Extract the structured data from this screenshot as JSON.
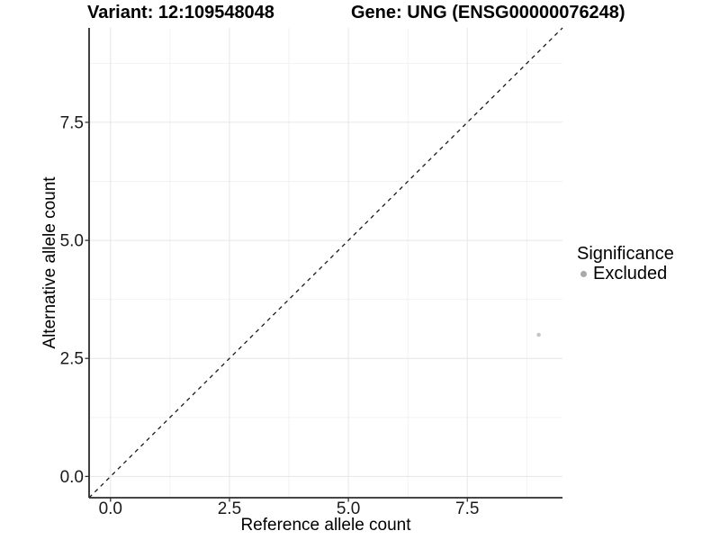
{
  "titles": {
    "variant": "Variant: 12:109548048",
    "gene": "Gene: UNG (ENSG00000076248)"
  },
  "chart_data": {
    "type": "scatter",
    "xlabel": "Reference allele count",
    "ylabel": "Alternative allele count",
    "xlim": [
      -0.45,
      9.5
    ],
    "ylim": [
      -0.45,
      9.5
    ],
    "x_ticks": [
      0.0,
      2.5,
      5.0,
      7.5
    ],
    "x_tick_labels": [
      "0.0",
      "2.5",
      "5.0",
      "7.5"
    ],
    "y_ticks": [
      0.0,
      2.5,
      5.0,
      7.5
    ],
    "y_tick_labels": [
      "0.0",
      "2.5",
      "5.0",
      "7.5"
    ],
    "x_minor_ticks": [
      1.25,
      3.75,
      6.25,
      8.75
    ],
    "y_minor_ticks": [
      1.25,
      3.75,
      6.25,
      8.75
    ],
    "grid": true,
    "points": [
      {
        "x": 9,
        "y": 3,
        "series": "Excluded"
      }
    ],
    "reference_line": {
      "slope": 1,
      "intercept": 0,
      "style": "dashed"
    },
    "legend": {
      "title": "Significance",
      "position": "right",
      "items": [
        {
          "label": "Excluded",
          "color": "#a9a9a9"
        }
      ]
    },
    "colors": {
      "point": "#c6c6c6",
      "legend_dot": "#a9a9a9",
      "grid_major": "#e6e6e6",
      "grid_minor": "#f2f2f2",
      "axis_line": "#2b2b2b",
      "tick": "#333333",
      "tick_label": "#1a1a1a",
      "reference_line": "#1a1a1a"
    }
  }
}
